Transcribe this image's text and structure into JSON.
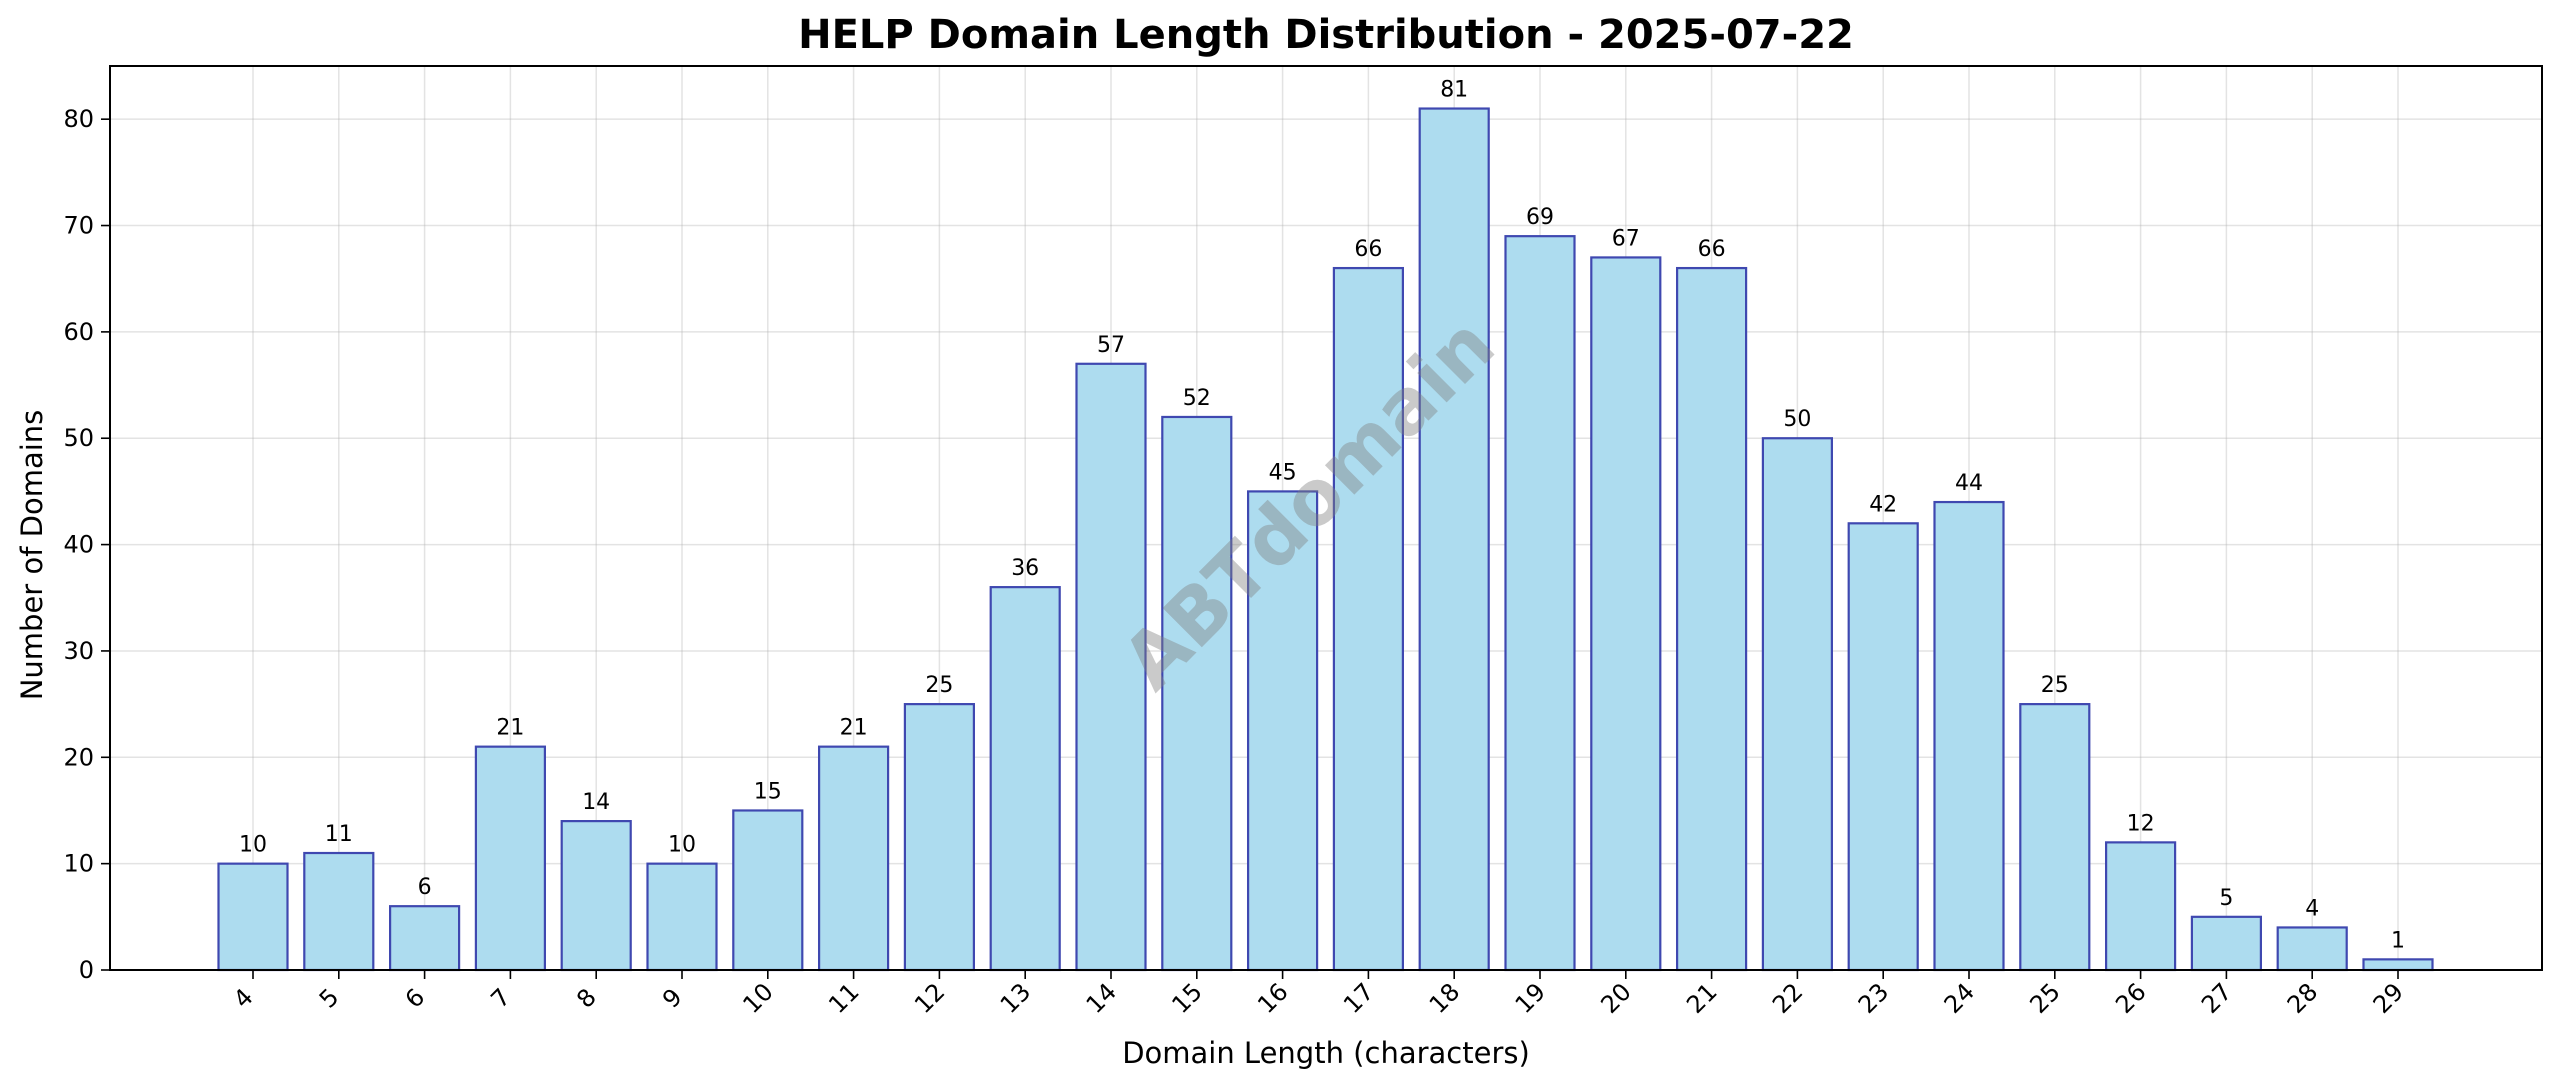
{
  "chart_data": {
    "type": "bar",
    "title": "HELP Domain Length Distribution - 2025-07-22",
    "xlabel": "Domain Length (characters)",
    "ylabel": "Number of Domains",
    "categories": [
      "4",
      "5",
      "6",
      "7",
      "8",
      "9",
      "10",
      "11",
      "12",
      "13",
      "14",
      "15",
      "16",
      "17",
      "18",
      "19",
      "20",
      "21",
      "22",
      "23",
      "24",
      "25",
      "26",
      "27",
      "28",
      "29"
    ],
    "values": [
      10,
      11,
      6,
      21,
      14,
      10,
      15,
      21,
      25,
      36,
      57,
      52,
      45,
      66,
      81,
      69,
      67,
      66,
      50,
      42,
      44,
      25,
      12,
      5,
      4,
      1
    ],
    "ylim": [
      0,
      85
    ],
    "yticks": [
      0,
      10,
      20,
      30,
      40,
      50,
      60,
      70,
      80
    ],
    "grid": true,
    "data_labels": true,
    "x_tick_rotation_deg": 45,
    "colors": {
      "bar_fill": "#ADDCEF",
      "bar_edge": "#3F48B0",
      "grid": "#b0b0b0",
      "axis": "#000000",
      "watermark": "#808080"
    },
    "watermark": "ABTdomain"
  }
}
